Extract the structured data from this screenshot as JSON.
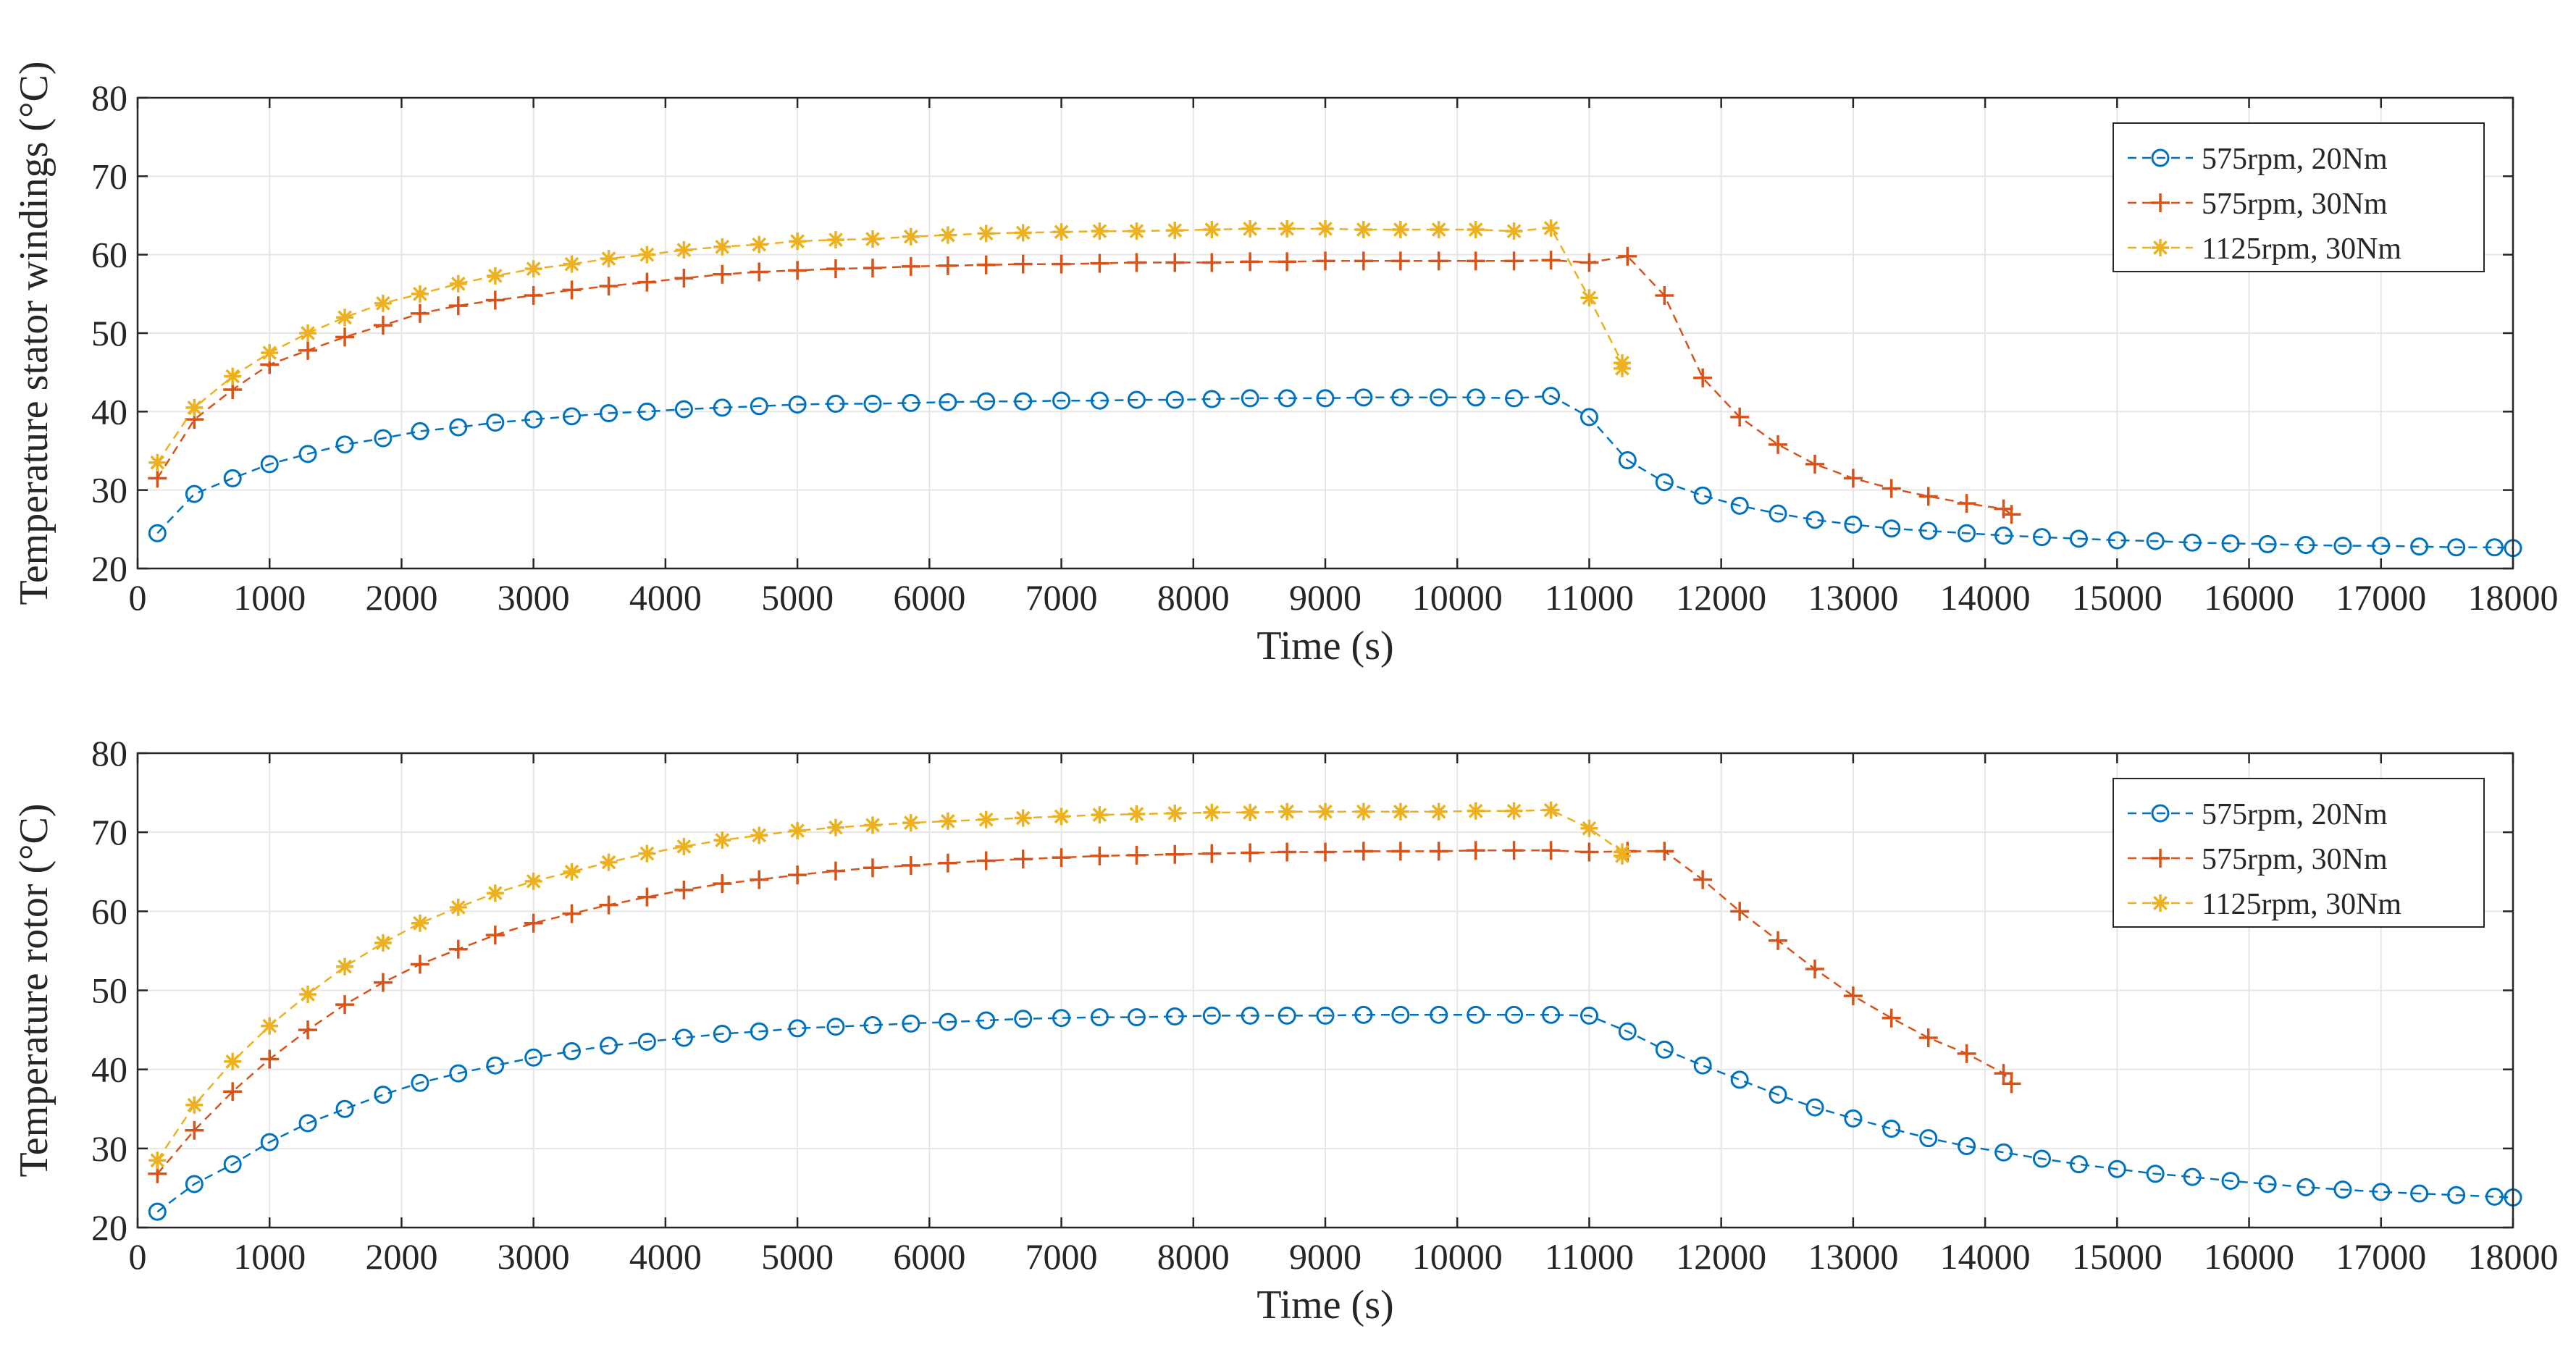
{
  "chart_data": [
    {
      "type": "line",
      "title": "",
      "xlabel": "Time (s)",
      "ylabel": "Temperature stator windings (°C)",
      "xlim": [
        0,
        18000
      ],
      "ylim": [
        20,
        80
      ],
      "xticks": [
        0,
        1000,
        2000,
        3000,
        4000,
        5000,
        6000,
        7000,
        8000,
        9000,
        10000,
        11000,
        12000,
        13000,
        14000,
        15000,
        16000,
        17000,
        18000
      ],
      "yticks": [
        20,
        30,
        40,
        50,
        60,
        70,
        80
      ],
      "grid": true,
      "legend_position": "top-right",
      "series": [
        {
          "name": "575rpm, 20Nm",
          "color": "#0072BD",
          "marker": "circle",
          "x": [
            150,
            430,
            720,
            1000,
            1290,
            1570,
            1860,
            2140,
            2430,
            2710,
            3000,
            3290,
            3570,
            3860,
            4140,
            4430,
            4710,
            5000,
            5290,
            5570,
            5860,
            6140,
            6430,
            6710,
            7000,
            7290,
            7570,
            7860,
            8140,
            8430,
            8710,
            9000,
            9290,
            9570,
            9860,
            10140,
            10430,
            10710,
            11000,
            11290,
            11570,
            11860,
            12140,
            12430,
            12710,
            13000,
            13290,
            13570,
            13860,
            14140,
            14430,
            14710,
            15000,
            15290,
            15570,
            15860,
            16140,
            16430,
            16710,
            17000,
            17290,
            17570,
            17860,
            18000
          ],
          "y": [
            24.5,
            29.5,
            31.5,
            33.3,
            34.6,
            35.8,
            36.6,
            37.5,
            38.0,
            38.6,
            39.0,
            39.4,
            39.8,
            40.0,
            40.3,
            40.5,
            40.7,
            40.9,
            41.0,
            41.0,
            41.1,
            41.2,
            41.3,
            41.3,
            41.4,
            41.4,
            41.5,
            41.5,
            41.6,
            41.7,
            41.7,
            41.7,
            41.8,
            41.8,
            41.8,
            41.8,
            41.7,
            42.0,
            39.3,
            33.8,
            31.0,
            29.3,
            28.0,
            27.0,
            26.2,
            25.6,
            25.1,
            24.8,
            24.5,
            24.2,
            24.0,
            23.8,
            23.6,
            23.5,
            23.3,
            23.2,
            23.1,
            23.0,
            22.9,
            22.9,
            22.8,
            22.7,
            22.7,
            22.6
          ]
        },
        {
          "name": "575rpm, 30Nm",
          "color": "#D95319",
          "marker": "plus",
          "x": [
            150,
            430,
            720,
            1000,
            1290,
            1570,
            1860,
            2140,
            2430,
            2710,
            3000,
            3290,
            3570,
            3860,
            4140,
            4430,
            4710,
            5000,
            5290,
            5570,
            5860,
            6140,
            6430,
            6710,
            7000,
            7290,
            7570,
            7860,
            8140,
            8430,
            8710,
            9000,
            9290,
            9570,
            9860,
            10140,
            10430,
            10710,
            11000,
            11290,
            11570,
            11860,
            12140,
            12430,
            12710,
            13000,
            13290,
            13570,
            13860,
            14140,
            14200
          ],
          "y": [
            31.5,
            39.0,
            42.8,
            46.0,
            47.8,
            49.5,
            51.0,
            52.5,
            53.5,
            54.2,
            54.8,
            55.5,
            56.0,
            56.5,
            57.0,
            57.5,
            57.8,
            58.0,
            58.2,
            58.3,
            58.5,
            58.6,
            58.7,
            58.8,
            58.8,
            58.9,
            59.0,
            59.0,
            59.0,
            59.1,
            59.1,
            59.2,
            59.2,
            59.2,
            59.2,
            59.2,
            59.2,
            59.3,
            59.0,
            59.8,
            54.8,
            44.3,
            39.3,
            35.8,
            33.3,
            31.5,
            30.2,
            29.2,
            28.3,
            27.6,
            26.9
          ]
        },
        {
          "name": "1125rpm, 30Nm",
          "color": "#EDB120",
          "marker": "asterisk",
          "x": [
            150,
            430,
            720,
            1000,
            1290,
            1570,
            1860,
            2140,
            2430,
            2710,
            3000,
            3290,
            3570,
            3860,
            4140,
            4430,
            4710,
            5000,
            5290,
            5570,
            5860,
            6140,
            6430,
            6710,
            7000,
            7290,
            7570,
            7860,
            8140,
            8430,
            8710,
            9000,
            9290,
            9570,
            9860,
            10140,
            10430,
            10710,
            11000,
            11250,
            11250
          ],
          "y": [
            33.5,
            40.5,
            44.5,
            47.5,
            50.0,
            52.0,
            53.8,
            55.0,
            56.3,
            57.3,
            58.2,
            58.8,
            59.5,
            60.0,
            60.6,
            61.0,
            61.3,
            61.7,
            61.9,
            62.0,
            62.3,
            62.5,
            62.7,
            62.8,
            62.9,
            63.0,
            63.0,
            63.1,
            63.2,
            63.3,
            63.3,
            63.3,
            63.2,
            63.2,
            63.2,
            63.2,
            63.0,
            63.4,
            54.5,
            46.2,
            45.5
          ]
        }
      ]
    },
    {
      "type": "line",
      "title": "",
      "xlabel": "Time (s)",
      "ylabel": "Temperature rotor (°C)",
      "xlim": [
        0,
        18000
      ],
      "ylim": [
        20,
        80
      ],
      "xticks": [
        0,
        1000,
        2000,
        3000,
        4000,
        5000,
        6000,
        7000,
        8000,
        9000,
        10000,
        11000,
        12000,
        13000,
        14000,
        15000,
        16000,
        17000,
        18000
      ],
      "yticks": [
        20,
        30,
        40,
        50,
        60,
        70,
        80
      ],
      "grid": true,
      "legend_position": "top-right",
      "series": [
        {
          "name": "575rpm, 20Nm",
          "color": "#0072BD",
          "marker": "circle",
          "x": [
            150,
            430,
            720,
            1000,
            1290,
            1570,
            1860,
            2140,
            2430,
            2710,
            3000,
            3290,
            3570,
            3860,
            4140,
            4430,
            4710,
            5000,
            5290,
            5570,
            5860,
            6140,
            6430,
            6710,
            7000,
            7290,
            7570,
            7860,
            8140,
            8430,
            8710,
            9000,
            9290,
            9570,
            9860,
            10140,
            10430,
            10710,
            11000,
            11290,
            11570,
            11860,
            12140,
            12430,
            12710,
            13000,
            13290,
            13570,
            13860,
            14140,
            14430,
            14710,
            15000,
            15290,
            15570,
            15860,
            16140,
            16430,
            16710,
            17000,
            17290,
            17570,
            17860,
            18000
          ],
          "y": [
            22.0,
            25.5,
            28.0,
            30.8,
            33.2,
            35.0,
            36.8,
            38.3,
            39.5,
            40.5,
            41.5,
            42.3,
            43.0,
            43.5,
            44.0,
            44.5,
            44.8,
            45.2,
            45.4,
            45.6,
            45.8,
            46.0,
            46.2,
            46.4,
            46.5,
            46.6,
            46.6,
            46.7,
            46.8,
            46.8,
            46.8,
            46.8,
            46.9,
            46.9,
            46.9,
            46.9,
            46.9,
            46.9,
            46.8,
            44.8,
            42.5,
            40.5,
            38.7,
            36.8,
            35.2,
            33.8,
            32.5,
            31.3,
            30.3,
            29.5,
            28.7,
            28.0,
            27.4,
            26.8,
            26.4,
            25.9,
            25.5,
            25.1,
            24.8,
            24.5,
            24.3,
            24.1,
            23.9,
            23.8
          ]
        },
        {
          "name": "575rpm, 30Nm",
          "color": "#D95319",
          "marker": "plus",
          "x": [
            150,
            430,
            720,
            1000,
            1290,
            1570,
            1860,
            2140,
            2430,
            2710,
            3000,
            3290,
            3570,
            3860,
            4140,
            4430,
            4710,
            5000,
            5290,
            5570,
            5860,
            6140,
            6430,
            6710,
            7000,
            7290,
            7570,
            7860,
            8140,
            8430,
            8710,
            9000,
            9290,
            9570,
            9860,
            10140,
            10430,
            10710,
            11000,
            11290,
            11570,
            11860,
            12140,
            12430,
            12710,
            13000,
            13290,
            13570,
            13860,
            14140,
            14200
          ],
          "y": [
            26.8,
            32.3,
            37.2,
            41.3,
            45.0,
            48.2,
            51.0,
            53.3,
            55.2,
            57.0,
            58.5,
            59.7,
            60.8,
            61.8,
            62.7,
            63.5,
            64.0,
            64.6,
            65.1,
            65.5,
            65.8,
            66.1,
            66.4,
            66.6,
            66.8,
            67.0,
            67.1,
            67.2,
            67.3,
            67.4,
            67.5,
            67.5,
            67.6,
            67.6,
            67.6,
            67.7,
            67.7,
            67.7,
            67.5,
            67.6,
            67.6,
            64.0,
            60.0,
            56.3,
            52.7,
            49.3,
            46.5,
            44.0,
            42.0,
            39.5,
            38.2
          ]
        },
        {
          "name": "1125rpm, 30Nm",
          "color": "#EDB120",
          "marker": "asterisk",
          "x": [
            150,
            430,
            720,
            1000,
            1290,
            1570,
            1860,
            2140,
            2430,
            2710,
            3000,
            3290,
            3570,
            3860,
            4140,
            4430,
            4710,
            5000,
            5290,
            5570,
            5860,
            6140,
            6430,
            6710,
            7000,
            7290,
            7570,
            7860,
            8140,
            8430,
            8710,
            9000,
            9290,
            9570,
            9860,
            10140,
            10430,
            10710,
            11000,
            11250,
            11250
          ],
          "y": [
            28.5,
            35.5,
            41.0,
            45.5,
            49.5,
            53.0,
            56.0,
            58.5,
            60.5,
            62.3,
            63.8,
            65.0,
            66.2,
            67.3,
            68.2,
            69.0,
            69.6,
            70.2,
            70.6,
            70.9,
            71.2,
            71.4,
            71.6,
            71.8,
            72.0,
            72.2,
            72.3,
            72.4,
            72.5,
            72.5,
            72.6,
            72.6,
            72.6,
            72.6,
            72.6,
            72.7,
            72.7,
            72.8,
            70.5,
            67.5,
            67.0
          ]
        }
      ]
    }
  ]
}
